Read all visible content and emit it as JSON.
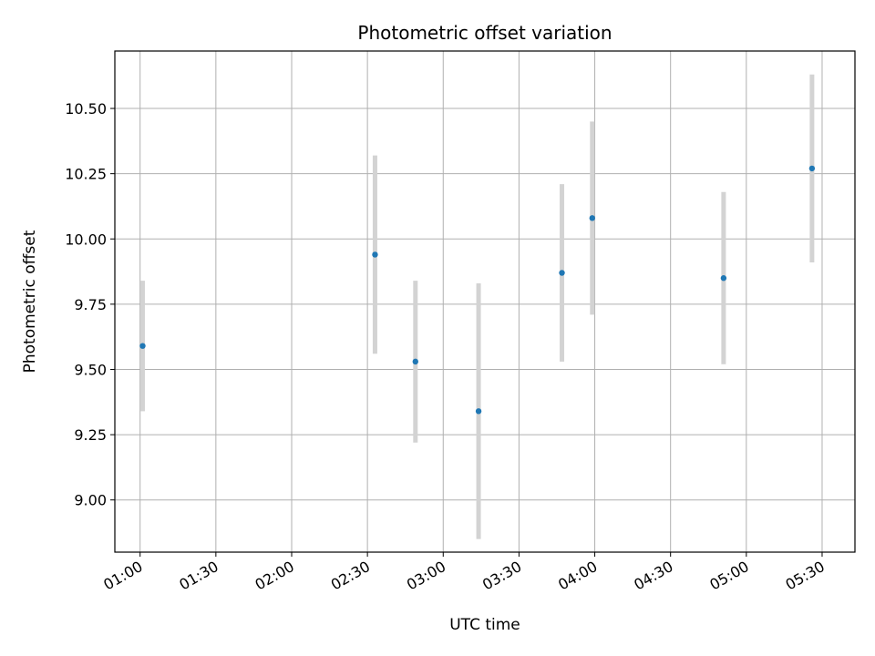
{
  "chart_data": {
    "type": "scatter",
    "title": "Photometric offset variation",
    "xlabel": "UTC time",
    "ylabel": "Photometric offset",
    "x_unit": "time of day (HH:MM, UTC)",
    "xlim": [
      "00:50",
      "05:43"
    ],
    "ylim": [
      8.8,
      10.72
    ],
    "xticks": [
      "01:00",
      "01:30",
      "02:00",
      "02:30",
      "03:00",
      "03:30",
      "04:00",
      "04:30",
      "05:00",
      "05:30"
    ],
    "yticks": [
      9.0,
      9.25,
      9.5,
      9.75,
      10.0,
      10.25,
      10.5
    ],
    "ytick_labels": [
      "9.00",
      "9.25",
      "9.50",
      "9.75",
      "10.00",
      "10.25",
      "10.50"
    ],
    "grid": true,
    "legend": "none",
    "series": [
      {
        "marker": "point",
        "color": "#1f77b4",
        "errorbar_color": "#d3d3d3",
        "points": [
          {
            "x": "01:01",
            "y": 9.59,
            "yerr": 0.25
          },
          {
            "x": "02:33",
            "y": 9.94,
            "yerr": 0.38
          },
          {
            "x": "02:49",
            "y": 9.53,
            "yerr": 0.31
          },
          {
            "x": "03:14",
            "y": 9.34,
            "yerr": 0.49
          },
          {
            "x": "03:47",
            "y": 9.87,
            "yerr": 0.34
          },
          {
            "x": "03:59",
            "y": 10.08,
            "yerr": 0.37
          },
          {
            "x": "04:51",
            "y": 9.85,
            "yerr": 0.33
          },
          {
            "x": "05:26",
            "y": 10.27,
            "yerr": 0.36
          }
        ]
      }
    ]
  }
}
